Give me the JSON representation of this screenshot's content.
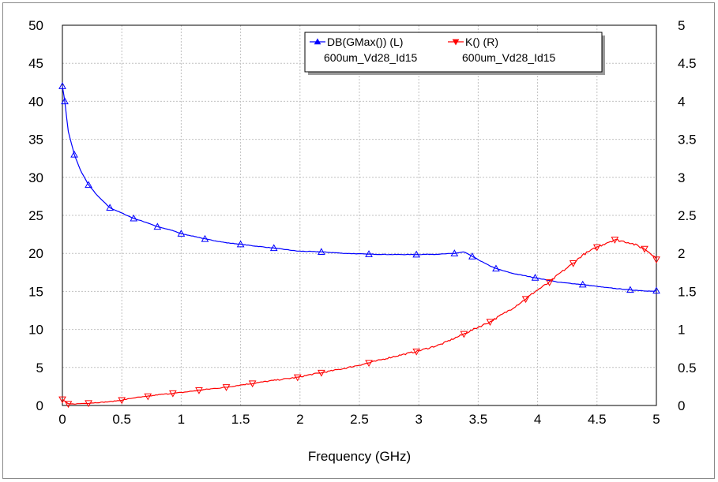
{
  "chart_data": {
    "type": "line",
    "title": "",
    "xlabel": "Frequency (GHz)",
    "ylabel_left": "",
    "ylabel_right": "",
    "xlim": [
      0,
      5
    ],
    "ylim_left": [
      0,
      50
    ],
    "ylim_right": [
      0,
      5
    ],
    "x_ticks": [
      "0",
      "0.5",
      "1",
      "1.5",
      "2",
      "2.5",
      "3",
      "3.5",
      "4",
      "4.5",
      "5"
    ],
    "y_left_ticks": [
      "0",
      "5",
      "10",
      "15",
      "20",
      "25",
      "30",
      "35",
      "40",
      "45",
      "50"
    ],
    "y_right_ticks": [
      "0",
      "0.5",
      "1",
      "1.5",
      "2",
      "2.5",
      "3",
      "3.5",
      "4",
      "4.5",
      "5"
    ],
    "grid": true,
    "legend_position": "top-right",
    "series": [
      {
        "name": "DB(GMax()) (L)",
        "sub_label": "600um_Vd28_Id15",
        "axis": "left",
        "color": "#0000ff",
        "marker": "triangle-up",
        "x": [
          0.0,
          0.02,
          0.05,
          0.1,
          0.15,
          0.22,
          0.3,
          0.4,
          0.5,
          0.6,
          0.72,
          0.8,
          0.93,
          1.0,
          1.15,
          1.2,
          1.38,
          1.5,
          1.6,
          1.78,
          1.98,
          2.18,
          2.38,
          2.58,
          2.78,
          2.98,
          3.18,
          3.3,
          3.38,
          3.45,
          3.58,
          3.65,
          3.78,
          3.98,
          4.18,
          4.38,
          4.58,
          4.78,
          4.98,
          5.0
        ],
        "y": [
          42.0,
          40.0,
          36.0,
          33.0,
          31.0,
          29.0,
          27.5,
          26.0,
          25.3,
          24.6,
          24.0,
          23.5,
          23.0,
          22.6,
          22.1,
          21.9,
          21.4,
          21.2,
          21.0,
          20.7,
          20.3,
          20.2,
          20.0,
          19.9,
          19.85,
          19.85,
          19.9,
          20.0,
          20.2,
          19.6,
          18.5,
          18.0,
          17.4,
          16.8,
          16.2,
          15.9,
          15.5,
          15.2,
          15.0,
          15.1
        ]
      },
      {
        "name": "K() (R)",
        "sub_label": "600um_Vd28_Id15",
        "axis": "right",
        "color": "#ff0000",
        "marker": "triangle-down",
        "x": [
          0.0,
          0.05,
          0.1,
          0.22,
          0.4,
          0.5,
          0.6,
          0.72,
          0.8,
          0.93,
          1.0,
          1.15,
          1.2,
          1.38,
          1.5,
          1.6,
          1.78,
          1.98,
          2.1,
          2.18,
          2.38,
          2.58,
          2.78,
          2.98,
          3.18,
          3.38,
          3.5,
          3.6,
          3.78,
          3.9,
          3.98,
          4.1,
          4.18,
          4.3,
          4.38,
          4.5,
          4.58,
          4.65,
          4.78,
          4.9,
          4.98,
          5.0
        ],
        "y": [
          0.08,
          0.02,
          0.02,
          0.03,
          0.05,
          0.07,
          0.1,
          0.12,
          0.14,
          0.16,
          0.17,
          0.2,
          0.21,
          0.24,
          0.27,
          0.29,
          0.33,
          0.37,
          0.41,
          0.43,
          0.49,
          0.56,
          0.64,
          0.71,
          0.8,
          0.94,
          1.03,
          1.1,
          1.27,
          1.4,
          1.5,
          1.62,
          1.73,
          1.87,
          1.98,
          2.08,
          2.14,
          2.18,
          2.14,
          2.06,
          1.97,
          1.92
        ]
      }
    ]
  }
}
